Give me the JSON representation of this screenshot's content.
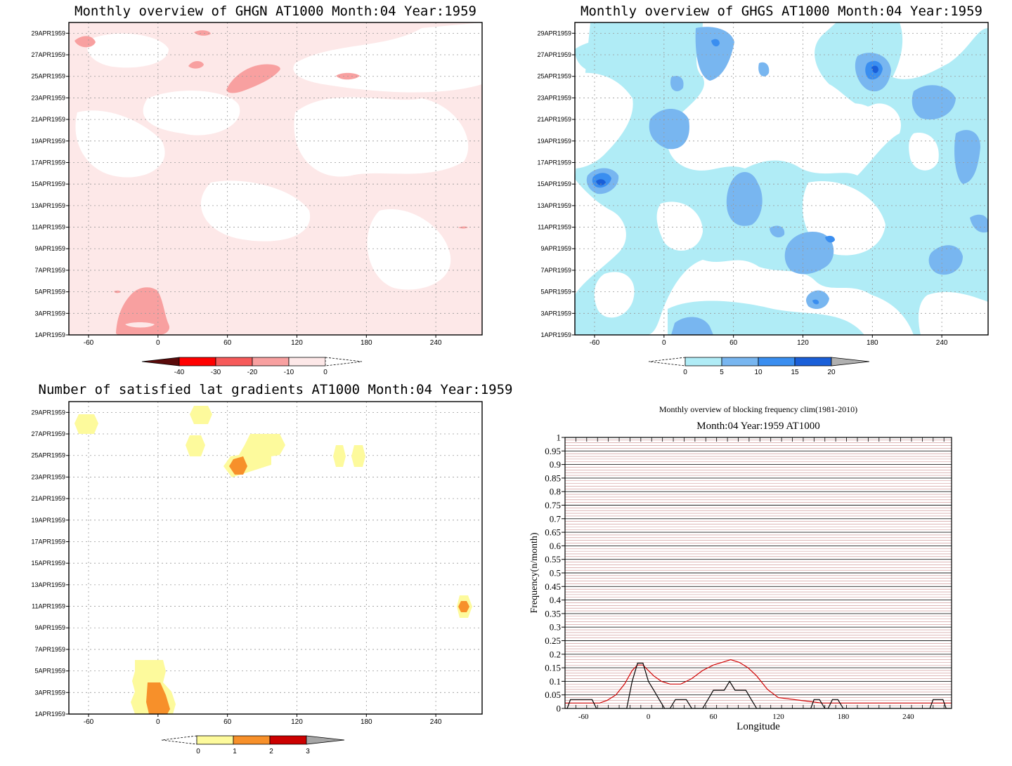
{
  "colors": {
    "ghgn_levels": [
      "#5a0a0a",
      "#ff0000",
      "#f65a5a",
      "#f8a0a0",
      "#fde8e8",
      "#ffffff"
    ],
    "ghgs_levels": [
      "#ffffff",
      "#b0ecf6",
      "#78b6f0",
      "#3a8ef0",
      "#1a5fd8",
      "#b0b0b0"
    ],
    "lat_levels": [
      "#ffffff",
      "#fdfa9c",
      "#f7902a",
      "#cc0000",
      "#a6a6a6"
    ],
    "blocking_clim": "#d00000",
    "blocking_year": "#000000"
  },
  "chart_data": [
    {
      "type": "heatmap",
      "id": "ghgn",
      "title": "Monthly overview of GHGN AT1000 Month:04 Year:1959",
      "y_ticks": [
        "1APR1959",
        "3APR1959",
        "5APR1959",
        "7APR1959",
        "9APR1959",
        "11APR1959",
        "13APR1959",
        "15APR1959",
        "17APR1959",
        "19APR1959",
        "21APR1959",
        "23APR1959",
        "25APR1959",
        "27APR1959",
        "29APR1959"
      ],
      "x_ticks": [
        "-60",
        "0",
        "60",
        "120",
        "180",
        "240"
      ],
      "xlim": [
        -77,
        280
      ],
      "colorbar": {
        "labels": [
          "-40",
          "-30",
          "-20",
          "-10",
          "0"
        ],
        "levels": [
          -40,
          -30,
          -20,
          -10,
          0
        ]
      }
    },
    {
      "type": "heatmap",
      "id": "ghgs",
      "title": "Monthly overview of GHGS AT1000 Month:04 Year:1959",
      "y_ticks": [
        "1APR1959",
        "3APR1959",
        "5APR1959",
        "7APR1959",
        "9APR1959",
        "11APR1959",
        "13APR1959",
        "15APR1959",
        "17APR1959",
        "19APR1959",
        "21APR1959",
        "23APR1959",
        "25APR1959",
        "27APR1959",
        "29APR1959"
      ],
      "x_ticks": [
        "-60",
        "0",
        "60",
        "120",
        "180",
        "240"
      ],
      "xlim": [
        -77,
        280
      ],
      "colorbar": {
        "labels": [
          "0",
          "5",
          "10",
          "15",
          "20"
        ],
        "levels": [
          0,
          5,
          10,
          15,
          20
        ]
      }
    },
    {
      "type": "heatmap",
      "id": "latgrad",
      "title": "Number of satisfied lat gradients AT1000 Month:04 Year:1959",
      "y_ticks": [
        "1APR1959",
        "3APR1959",
        "5APR1959",
        "7APR1959",
        "9APR1959",
        "11APR1959",
        "13APR1959",
        "15APR1959",
        "17APR1959",
        "19APR1959",
        "21APR1959",
        "23APR1959",
        "25APR1959",
        "27APR1959",
        "29APR1959"
      ],
      "x_ticks": [
        "-60",
        "0",
        "60",
        "120",
        "180",
        "240"
      ],
      "xlim": [
        -77,
        280
      ],
      "colorbar": {
        "labels": [
          "0",
          "1",
          "2",
          "3"
        ],
        "levels": [
          0,
          1,
          2,
          3
        ]
      }
    },
    {
      "type": "line",
      "id": "blocking",
      "title": "Monthly overview of blocking frequency clim(1981-2010)",
      "subtitle": "Month:04 Year:1959  AT1000",
      "xlabel": "Longitude",
      "ylabel": "Frequency(n/month)",
      "xlim": [
        -77,
        280
      ],
      "ylim": [
        0,
        1
      ],
      "x_ticks": [
        "-60",
        "0",
        "60",
        "120",
        "180",
        "240"
      ],
      "y_ticks": [
        "0",
        "0.05",
        "0.1",
        "0.15",
        "0.2",
        "0.25",
        "0.3",
        "0.35",
        "0.4",
        "0.45",
        "0.5",
        "0.55",
        "0.6",
        "0.65",
        "0.7",
        "0.75",
        "0.8",
        "0.85",
        "0.9",
        "0.95",
        "1"
      ],
      "series": [
        {
          "x": [
            -77,
            -72,
            -65,
            -55,
            -45,
            -38,
            -30,
            -22,
            -15,
            -10,
            -5,
            0,
            5,
            12,
            20,
            30,
            40,
            50,
            60,
            68,
            76,
            84,
            92,
            100,
            110,
            120,
            140,
            160,
            180,
            200,
            220,
            240,
            260,
            280
          ],
          "values": [
            0.02,
            0.02,
            0.02,
            0.02,
            0.02,
            0.03,
            0.05,
            0.09,
            0.14,
            0.16,
            0.16,
            0.14,
            0.12,
            0.1,
            0.09,
            0.09,
            0.11,
            0.14,
            0.16,
            0.17,
            0.18,
            0.17,
            0.15,
            0.12,
            0.07,
            0.04,
            0.03,
            0.02,
            0.02,
            0.02,
            0.02,
            0.02,
            0.02,
            0.02
          ]
        },
        {
          "x": [
            -77,
            -75,
            -72,
            -68,
            -62,
            -58,
            -52,
            -48,
            -42,
            -30,
            -25,
            -20,
            -15,
            -10,
            -5,
            0,
            5,
            10,
            15,
            20,
            25,
            30,
            35,
            40,
            45,
            50,
            55,
            60,
            65,
            70,
            75,
            80,
            85,
            90,
            95,
            100,
            110,
            150,
            153,
            158,
            163,
            166,
            170,
            175,
            180,
            200,
            260,
            263,
            268,
            272,
            275,
            280
          ],
          "values": [
            0,
            0,
            0.033,
            0.033,
            0.033,
            0.033,
            0.033,
            0,
            0,
            0,
            0,
            0,
            0.1,
            0.167,
            0.167,
            0.1,
            0.067,
            0.033,
            0,
            0,
            0.033,
            0.033,
            0.033,
            0,
            0,
            0,
            0.033,
            0.067,
            0.067,
            0.067,
            0.1,
            0.067,
            0.067,
            0.067,
            0.033,
            0,
            0,
            0,
            0.033,
            0.033,
            0,
            0,
            0.033,
            0.033,
            0,
            0,
            0,
            0.033,
            0.033,
            0.033,
            0,
            0
          ]
        }
      ]
    }
  ]
}
